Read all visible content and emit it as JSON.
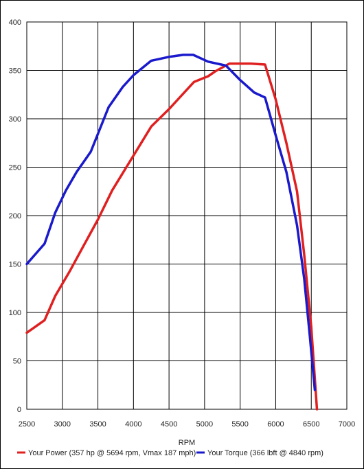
{
  "chart_data": {
    "type": "line",
    "title": "",
    "xlabel": "RPM",
    "ylabel": "",
    "xlim": [
      2500,
      7000
    ],
    "ylim": [
      0,
      400
    ],
    "x_ticks": [
      2500,
      3000,
      3500,
      4000,
      4500,
      5000,
      5500,
      6000,
      6500,
      7000
    ],
    "y_ticks": [
      0,
      50,
      100,
      150,
      200,
      250,
      300,
      350,
      400
    ],
    "grid": true,
    "legend_position": "bottom",
    "series": [
      {
        "name": "Your Power (357 hp @ 5694 rpm, Vmax 187 mph)",
        "color": "#e02020",
        "x": [
          2500,
          2750,
          2900,
          3100,
          3300,
          3500,
          3700,
          3900,
          4100,
          4250,
          4500,
          4650,
          4850,
          5050,
          5150,
          5350,
          5650,
          5850,
          6000,
          6150,
          6300,
          6400,
          6500,
          6580
        ],
        "y": [
          79,
          92,
          117,
          142,
          169,
          196,
          226,
          250,
          274,
          292,
          310,
          322,
          338,
          344,
          349,
          357,
          357,
          356,
          320,
          275,
          225,
          160,
          85,
          0
        ]
      },
      {
        "name": "Your Torque (366 lbft @ 4840 rpm)",
        "color": "#1a1acc",
        "x": [
          2500,
          2750,
          2900,
          3050,
          3200,
          3400,
          3650,
          3850,
          4000,
          4250,
          4500,
          4700,
          4840,
          5050,
          5300,
          5500,
          5700,
          5850,
          6000,
          6150,
          6300,
          6400,
          6480,
          6550
        ],
        "y": [
          150,
          171,
          203,
          226,
          245,
          266,
          312,
          333,
          345,
          360,
          364,
          366,
          366,
          359,
          355,
          340,
          327,
          322,
          283,
          245,
          190,
          135,
          75,
          20
        ]
      }
    ]
  }
}
